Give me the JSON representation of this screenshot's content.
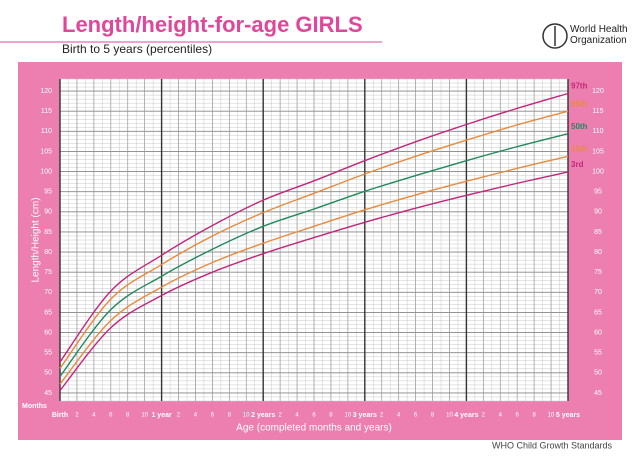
{
  "chart_data": {
    "type": "line",
    "title": "Length/height-for-age GIRLS",
    "subtitle": "Birth to 5 years (percentiles)",
    "organization": "World Health Organization",
    "footer": "WHO Child Growth Standards",
    "x_label": "Age (completed months and years)",
    "x_unit_label": "Months",
    "y_label": "Length/Height (cm)",
    "x": [
      0,
      6,
      12,
      18,
      24,
      30,
      36,
      42,
      48,
      54,
      60
    ],
    "series": [
      {
        "name": "97th",
        "color": "#c2267c",
        "values": [
          52.7,
          70.3,
          79.2,
          86.6,
          92.9,
          97.7,
          102.7,
          107.4,
          111.7,
          115.7,
          119.4
        ]
      },
      {
        "name": "85th",
        "color": "#e98a3c",
        "values": [
          51.1,
          68.3,
          76.9,
          84.0,
          89.8,
          94.6,
          99.4,
          103.8,
          107.8,
          111.6,
          115.0
        ]
      },
      {
        "name": "50th",
        "color": "#1f8a5c",
        "values": [
          49.1,
          65.7,
          74.0,
          80.7,
          86.4,
          90.7,
          95.1,
          99.0,
          102.7,
          106.2,
          109.4
        ]
      },
      {
        "name": "15th",
        "color": "#e98a3c",
        "values": [
          47.2,
          63.0,
          71.3,
          77.4,
          82.2,
          86.4,
          90.5,
          94.2,
          97.6,
          100.8,
          103.8
        ]
      },
      {
        "name": "3rd",
        "color": "#c2267c",
        "values": [
          45.6,
          61.2,
          69.2,
          75.0,
          79.6,
          83.6,
          87.4,
          90.9,
          94.1,
          97.1,
          99.9
        ]
      }
    ],
    "xlim": [
      0,
      60
    ],
    "ylim": [
      43,
      123
    ],
    "xticks": [
      {
        "value": 0,
        "label": "Birth"
      },
      {
        "value": 2,
        "label": "2"
      },
      {
        "value": 4,
        "label": "4"
      },
      {
        "value": 6,
        "label": "6"
      },
      {
        "value": 8,
        "label": "8"
      },
      {
        "value": 10,
        "label": "10"
      },
      {
        "value": 12,
        "label": "1 year"
      },
      {
        "value": 14,
        "label": "2"
      },
      {
        "value": 16,
        "label": "4"
      },
      {
        "value": 18,
        "label": "6"
      },
      {
        "value": 20,
        "label": "8"
      },
      {
        "value": 22,
        "label": "10"
      },
      {
        "value": 24,
        "label": "2 years"
      },
      {
        "value": 26,
        "label": "2"
      },
      {
        "value": 28,
        "label": "4"
      },
      {
        "value": 30,
        "label": "6"
      },
      {
        "value": 32,
        "label": "8"
      },
      {
        "value": 34,
        "label": "10"
      },
      {
        "value": 36,
        "label": "3 years"
      },
      {
        "value": 38,
        "label": "2"
      },
      {
        "value": 40,
        "label": "4"
      },
      {
        "value": 42,
        "label": "6"
      },
      {
        "value": 44,
        "label": "8"
      },
      {
        "value": 46,
        "label": "10"
      },
      {
        "value": 48,
        "label": "4 years"
      },
      {
        "value": 50,
        "label": "2"
      },
      {
        "value": 52,
        "label": "4"
      },
      {
        "value": 54,
        "label": "6"
      },
      {
        "value": 56,
        "label": "8"
      },
      {
        "value": 58,
        "label": "10"
      },
      {
        "value": 60,
        "label": "5 years"
      }
    ],
    "yticks": [
      45,
      50,
      55,
      60,
      65,
      70,
      75,
      80,
      85,
      90,
      95,
      100,
      105,
      110,
      115,
      120
    ],
    "grid": true
  }
}
